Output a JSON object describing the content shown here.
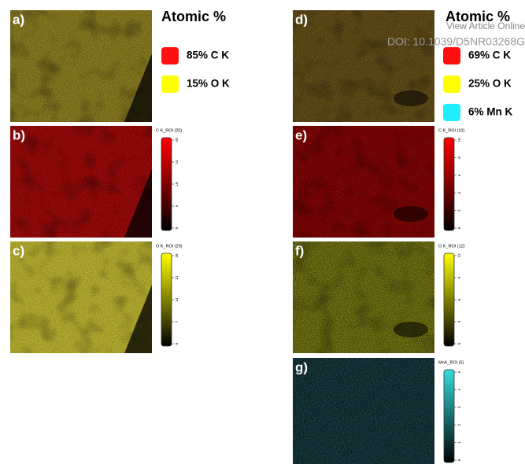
{
  "watermark": {
    "line1": "View Article Online",
    "line2": "DOI: 10.1039/D5NR03268G"
  },
  "panels": [
    {
      "label": "a)"
    },
    {
      "label": "b)"
    },
    {
      "label": "c)"
    },
    {
      "label": "d)"
    },
    {
      "label": "e)"
    },
    {
      "label": "f)"
    },
    {
      "label": "g)"
    }
  ],
  "legends": [
    {
      "title": "Atomic %",
      "items": [
        {
          "label": "85% C K",
          "color": "#ff1010"
        },
        {
          "label": "15% O K",
          "color": "#ffff00"
        }
      ]
    },
    {
      "title": "Atomic %",
      "items": [
        {
          "label": "69% C K",
          "color": "#ff1010"
        },
        {
          "label": "25% O K",
          "color": "#ffff00"
        },
        {
          "label": "6% Mn K",
          "color": "#22eeff"
        }
      ]
    }
  ],
  "colorbars": [
    {
      "title": "C K_ROI (20)",
      "color": "#ff0000",
      "ticks": [
        "0",
        "5",
        "10",
        "15",
        "20"
      ]
    },
    {
      "title": "O K_ROI (29)",
      "color": "#ffff00",
      "ticks": [
        "0",
        "7",
        "14",
        "21",
        "28"
      ]
    },
    {
      "title": "C K_ROI (10)",
      "color": "#ff0000",
      "ticks": [
        "0",
        "2",
        "4",
        "6",
        "8",
        "10"
      ]
    },
    {
      "title": "O K_ROI (12)",
      "color": "#ffff00",
      "ticks": [
        "0",
        "3",
        "6",
        "9",
        "12"
      ]
    },
    {
      "title": "MnK_ROI (5)",
      "color": "#33dddd",
      "ticks": [
        "0",
        "1",
        "2",
        "3",
        "4",
        "5"
      ]
    }
  ]
}
